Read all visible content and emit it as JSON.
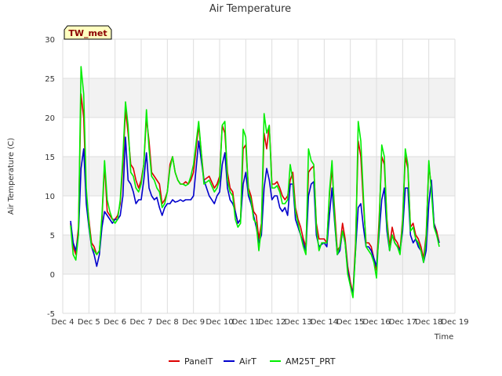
{
  "chart_data": {
    "type": "line",
    "title": "Air Temperature",
    "xlabel": "Time",
    "ylabel": "Air Temperature (C)",
    "tag": "TW_met",
    "xlim": [
      0,
      15
    ],
    "ylim": [
      -5,
      30
    ],
    "yticks": [
      -5,
      0,
      5,
      10,
      15,
      20,
      25,
      30
    ],
    "xticks": [
      {
        "pos": 0,
        "label": "Dec 4"
      },
      {
        "pos": 1,
        "label": "Dec 5"
      },
      {
        "pos": 2,
        "label": "Dec 6"
      },
      {
        "pos": 3,
        "label": "Dec 7"
      },
      {
        "pos": 4,
        "label": "Dec 8"
      },
      {
        "pos": 5,
        "label": "Dec 9"
      },
      {
        "pos": 6,
        "label": "Dec 10"
      },
      {
        "pos": 7,
        "label": "Dec 11"
      },
      {
        "pos": 8,
        "label": "Dec 12"
      },
      {
        "pos": 9,
        "label": "Dec 13"
      },
      {
        "pos": 10,
        "label": "Dec 14"
      },
      {
        "pos": 11,
        "label": "Dec 15"
      },
      {
        "pos": 12,
        "label": "Dec 16"
      },
      {
        "pos": 13,
        "label": "Dec 17"
      },
      {
        "pos": 14,
        "label": "Dec 18"
      },
      {
        "pos": 15,
        "label": "Dec 19"
      }
    ],
    "grid": true,
    "legend_position": "bottom",
    "series": [
      {
        "name": "PanelT",
        "color": "#dd0000",
        "x": [
          0.3,
          0.4,
          0.5,
          0.6,
          0.7,
          0.8,
          0.9,
          1.0,
          1.1,
          1.2,
          1.3,
          1.4,
          1.5,
          1.6,
          1.7,
          1.8,
          1.9,
          2.0,
          2.1,
          2.2,
          2.3,
          2.4,
          2.5,
          2.6,
          2.7,
          2.8,
          2.9,
          3.0,
          3.1,
          3.2,
          3.3,
          3.4,
          3.5,
          3.6,
          3.7,
          3.8,
          3.9,
          4.0,
          4.1,
          4.2,
          4.3,
          4.4,
          4.5,
          4.6,
          4.7,
          4.8,
          4.9,
          5.0,
          5.2,
          5.4,
          5.6,
          5.8,
          5.9,
          6.0,
          6.1,
          6.2,
          6.3,
          6.4,
          6.5,
          6.6,
          6.7,
          6.8,
          6.9,
          7.0,
          7.1,
          7.2,
          7.3,
          7.4,
          7.5,
          7.6,
          7.7,
          7.8,
          7.9,
          8.0,
          8.1,
          8.2,
          8.3,
          8.4,
          8.5,
          8.6,
          8.7,
          8.8,
          8.9,
          9.0,
          9.1,
          9.2,
          9.3,
          9.4,
          9.5,
          9.6,
          9.7,
          9.8,
          9.9,
          10.0,
          10.1,
          10.2,
          10.3,
          10.4,
          10.5,
          10.6,
          10.7,
          10.8,
          10.9,
          11.0,
          11.1,
          11.2,
          11.3,
          11.4,
          11.5,
          11.6,
          11.7,
          11.8,
          11.9,
          12.0,
          12.1,
          12.2,
          12.3,
          12.4,
          12.5,
          12.6,
          12.7,
          12.8,
          12.9,
          13.0,
          13.1,
          13.2,
          13.3,
          13.4,
          13.5,
          13.6,
          13.7,
          13.8,
          13.9,
          14.0,
          14.1,
          14.2,
          14.3,
          14.4
        ],
        "y": [
          6.5,
          3.5,
          2.5,
          6.0,
          23.0,
          20.0,
          10.0,
          7.0,
          4.0,
          3.5,
          2.5,
          3.0,
          7.0,
          14.0,
          8.0,
          7.5,
          7.0,
          7.0,
          7.5,
          9.0,
          14.0,
          21.0,
          18.0,
          14.0,
          13.5,
          12.0,
          11.0,
          12.0,
          14.0,
          20.0,
          17.0,
          13.0,
          12.5,
          12.0,
          11.5,
          9.0,
          9.5,
          10.5,
          14.0,
          15.0,
          13.0,
          12.0,
          11.5,
          11.5,
          11.8,
          11.5,
          12.0,
          13.0,
          19.0,
          12.0,
          12.5,
          11.0,
          11.5,
          12.5,
          19.0,
          18.0,
          13.0,
          11.0,
          10.5,
          8.0,
          6.5,
          7.0,
          16.0,
          16.5,
          11.0,
          10.0,
          8.0,
          7.5,
          4.5,
          6.5,
          18.0,
          16.0,
          19.0,
          11.5,
          11.5,
          11.8,
          11.0,
          10.0,
          9.5,
          10.0,
          12.0,
          13.0,
          8.5,
          7.0,
          6.0,
          4.5,
          3.5,
          13.0,
          13.5,
          13.8,
          6.5,
          4.5,
          4.5,
          4.5,
          4.0,
          10.0,
          13.5,
          8.0,
          3.0,
          3.5,
          6.5,
          4.5,
          1.0,
          -1.0,
          -2.5,
          4.0,
          17.0,
          15.0,
          9.0,
          4.0,
          4.0,
          3.5,
          2.0,
          0.5,
          7.0,
          15.0,
          14.0,
          7.0,
          3.5,
          6.0,
          4.5,
          4.0,
          3.0,
          7.0,
          15.0,
          13.5,
          6.0,
          6.5,
          5.0,
          4.5,
          3.5,
          2.0,
          5.0,
          14.0,
          11.0,
          6.5,
          5.5,
          4.0
        ]
      },
      {
        "name": "AirT",
        "color": "#0000cc",
        "x": [
          0.3,
          0.4,
          0.5,
          0.6,
          0.7,
          0.8,
          0.9,
          1.0,
          1.1,
          1.2,
          1.3,
          1.4,
          1.5,
          1.6,
          1.7,
          1.8,
          1.9,
          2.0,
          2.1,
          2.2,
          2.3,
          2.4,
          2.5,
          2.6,
          2.7,
          2.8,
          2.9,
          3.0,
          3.1,
          3.2,
          3.3,
          3.4,
          3.5,
          3.6,
          3.7,
          3.8,
          3.9,
          4.0,
          4.1,
          4.2,
          4.3,
          4.4,
          4.5,
          4.6,
          4.7,
          4.8,
          4.9,
          5.0,
          5.2,
          5.4,
          5.6,
          5.8,
          5.9,
          6.0,
          6.1,
          6.2,
          6.3,
          6.4,
          6.5,
          6.6,
          6.7,
          6.8,
          6.9,
          7.0,
          7.1,
          7.2,
          7.3,
          7.4,
          7.5,
          7.6,
          7.7,
          7.8,
          7.9,
          8.0,
          8.1,
          8.2,
          8.3,
          8.4,
          8.5,
          8.6,
          8.7,
          8.8,
          8.9,
          9.0,
          9.1,
          9.2,
          9.3,
          9.4,
          9.5,
          9.6,
          9.7,
          9.8,
          9.9,
          10.0,
          10.1,
          10.2,
          10.3,
          10.4,
          10.5,
          10.6,
          10.7,
          10.8,
          10.9,
          11.0,
          11.1,
          11.2,
          11.3,
          11.4,
          11.5,
          11.6,
          11.7,
          11.8,
          11.9,
          12.0,
          12.1,
          12.2,
          12.3,
          12.4,
          12.5,
          12.6,
          12.7,
          12.8,
          12.9,
          13.0,
          13.1,
          13.2,
          13.3,
          13.4,
          13.5,
          13.6,
          13.7,
          13.8,
          13.9,
          14.0,
          14.1,
          14.2,
          14.3,
          14.4
        ],
        "y": [
          6.8,
          4.0,
          3.0,
          5.0,
          13.5,
          16.0,
          9.0,
          6.0,
          3.5,
          2.5,
          1.0,
          2.5,
          6.0,
          8.0,
          7.5,
          7.0,
          6.5,
          7.0,
          7.0,
          7.5,
          10.0,
          17.5,
          12.0,
          11.5,
          10.5,
          9.0,
          9.5,
          9.5,
          12.0,
          15.5,
          11.0,
          10.0,
          9.5,
          9.8,
          8.5,
          7.5,
          8.5,
          9.0,
          9.0,
          9.5,
          9.2,
          9.3,
          9.5,
          9.3,
          9.5,
          9.5,
          9.5,
          10.0,
          17.0,
          12.0,
          10.0,
          9.0,
          10.0,
          10.5,
          14.0,
          15.5,
          11.0,
          9.5,
          9.0,
          8.0,
          6.5,
          7.0,
          11.5,
          13.0,
          10.0,
          9.0,
          7.5,
          6.0,
          4.0,
          5.0,
          11.0,
          13.5,
          12.0,
          9.5,
          10.0,
          10.0,
          8.5,
          8.0,
          8.5,
          7.5,
          11.5,
          11.5,
          7.0,
          6.0,
          5.0,
          4.0,
          3.0,
          10.0,
          11.5,
          11.8,
          5.0,
          3.5,
          3.8,
          4.0,
          3.5,
          7.5,
          11.0,
          6.5,
          2.5,
          3.0,
          5.5,
          4.0,
          0.5,
          -1.5,
          -2.5,
          3.0,
          8.5,
          9.0,
          6.0,
          3.5,
          3.5,
          3.0,
          2.0,
          1.0,
          5.0,
          9.5,
          11.0,
          5.5,
          3.0,
          5.0,
          4.0,
          3.5,
          3.0,
          5.5,
          11.0,
          11.0,
          5.0,
          4.0,
          4.5,
          3.5,
          3.0,
          1.5,
          3.0,
          9.0,
          12.0,
          6.5,
          5.0,
          4.0
        ]
      },
      {
        "name": "AM25T_PRT",
        "color": "#00ee00",
        "x": [
          0.3,
          0.4,
          0.5,
          0.6,
          0.7,
          0.8,
          0.9,
          1.0,
          1.1,
          1.2,
          1.3,
          1.4,
          1.5,
          1.6,
          1.7,
          1.8,
          1.9,
          2.0,
          2.1,
          2.2,
          2.3,
          2.4,
          2.5,
          2.6,
          2.7,
          2.8,
          2.9,
          3.0,
          3.1,
          3.2,
          3.3,
          3.4,
          3.5,
          3.6,
          3.7,
          3.8,
          3.9,
          4.0,
          4.1,
          4.2,
          4.3,
          4.4,
          4.5,
          4.6,
          4.7,
          4.8,
          4.9,
          5.0,
          5.2,
          5.4,
          5.6,
          5.8,
          5.9,
          6.0,
          6.1,
          6.2,
          6.3,
          6.4,
          6.5,
          6.6,
          6.7,
          6.8,
          6.9,
          7.0,
          7.1,
          7.2,
          7.3,
          7.4,
          7.5,
          7.6,
          7.7,
          7.8,
          7.9,
          8.0,
          8.1,
          8.2,
          8.3,
          8.4,
          8.5,
          8.6,
          8.7,
          8.8,
          8.9,
          9.0,
          9.1,
          9.2,
          9.3,
          9.4,
          9.5,
          9.6,
          9.7,
          9.8,
          9.9,
          10.0,
          10.1,
          10.2,
          10.3,
          10.4,
          10.5,
          10.6,
          10.7,
          10.8,
          10.9,
          11.0,
          11.1,
          11.2,
          11.3,
          11.4,
          11.5,
          11.6,
          11.7,
          11.8,
          11.9,
          12.0,
          12.1,
          12.2,
          12.3,
          12.4,
          12.5,
          12.6,
          12.7,
          12.8,
          12.9,
          13.0,
          13.1,
          13.2,
          13.3,
          13.4,
          13.5,
          13.6,
          13.7,
          13.8,
          13.9,
          14.0,
          14.1,
          14.2,
          14.3,
          14.4
        ],
        "y": [
          6.2,
          2.5,
          1.8,
          5.0,
          26.5,
          23.0,
          11.0,
          6.5,
          3.5,
          3.0,
          2.5,
          3.0,
          7.5,
          14.5,
          9.5,
          8.0,
          7.0,
          6.5,
          7.0,
          9.5,
          15.0,
          22.0,
          19.0,
          13.0,
          12.5,
          11.0,
          10.5,
          11.5,
          14.0,
          21.0,
          16.0,
          12.5,
          12.0,
          11.0,
          10.5,
          8.5,
          9.0,
          10.5,
          13.5,
          15.0,
          13.0,
          12.0,
          11.5,
          11.5,
          11.3,
          11.5,
          12.5,
          14.0,
          19.5,
          11.5,
          12.0,
          10.5,
          11.0,
          12.0,
          19.0,
          19.5,
          12.0,
          10.5,
          10.0,
          7.0,
          6.0,
          6.5,
          18.5,
          17.5,
          10.5,
          9.5,
          7.0,
          6.5,
          3.0,
          6.0,
          20.5,
          18.0,
          19.0,
          11.0,
          11.0,
          11.3,
          10.5,
          9.0,
          9.0,
          9.5,
          14.0,
          12.0,
          8.0,
          6.5,
          5.0,
          3.5,
          2.5,
          16.0,
          14.5,
          14.0,
          6.0,
          3.0,
          4.0,
          4.0,
          4.0,
          10.5,
          14.5,
          7.0,
          2.5,
          3.5,
          5.5,
          4.0,
          0.0,
          -1.5,
          -3.0,
          3.0,
          19.5,
          17.0,
          10.0,
          3.5,
          3.0,
          2.5,
          1.5,
          -0.5,
          6.0,
          16.5,
          15.0,
          6.5,
          3.0,
          5.0,
          4.0,
          3.5,
          2.5,
          6.5,
          16.0,
          14.0,
          5.5,
          6.0,
          4.5,
          4.0,
          3.0,
          1.5,
          4.5,
          14.5,
          10.5,
          6.0,
          5.0,
          3.5
        ]
      }
    ]
  }
}
